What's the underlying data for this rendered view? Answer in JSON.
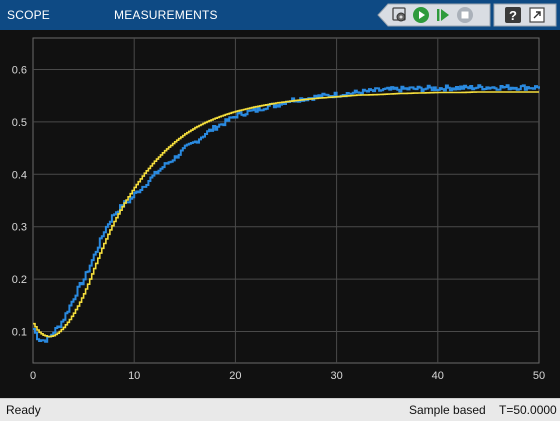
{
  "toolbar": {
    "tabs": [
      {
        "label": "SCOPE"
      },
      {
        "label": "MEASUREMENTS"
      }
    ],
    "icons": [
      "scope-settings-icon",
      "run-icon",
      "step-forward-icon",
      "stop-icon",
      "help-icon",
      "undock-icon"
    ],
    "accent": "#0e4a84"
  },
  "status": {
    "left": "Ready",
    "mode": "Sample based",
    "time": "T=50.0000"
  },
  "chart_data": {
    "type": "line",
    "xlim": [
      0,
      50
    ],
    "ylim": [
      0.04,
      0.66
    ],
    "x_ticks": [
      "0",
      "10",
      "20",
      "30",
      "40",
      "50"
    ],
    "y_ticks": [
      "0.1",
      "0.2",
      "0.3",
      "0.4",
      "0.5",
      "0.6"
    ],
    "grid": true,
    "background": "#111111",
    "series": [
      {
        "color": "#2a8ae0",
        "style": "stairs",
        "points": [
          [
            0,
            0.105
          ],
          [
            0.5,
            0.085
          ],
          [
            1,
            0.083
          ],
          [
            1.5,
            0.087
          ],
          [
            2,
            0.1
          ],
          [
            2.5,
            0.11
          ],
          [
            3,
            0.125
          ],
          [
            3.5,
            0.145
          ],
          [
            4,
            0.165
          ],
          [
            4.5,
            0.185
          ],
          [
            5,
            0.2
          ],
          [
            5.5,
            0.222
          ],
          [
            6,
            0.245
          ],
          [
            6.5,
            0.268
          ],
          [
            7,
            0.292
          ],
          [
            7.5,
            0.31
          ],
          [
            8,
            0.325
          ],
          [
            8.5,
            0.335
          ],
          [
            9,
            0.345
          ],
          [
            9.5,
            0.35
          ],
          [
            10,
            0.362
          ],
          [
            11,
            0.38
          ],
          [
            12,
            0.4
          ],
          [
            13,
            0.418
          ],
          [
            14,
            0.432
          ],
          [
            15,
            0.45
          ],
          [
            16,
            0.462
          ],
          [
            17,
            0.478
          ],
          [
            18,
            0.49
          ],
          [
            19,
            0.5
          ],
          [
            20,
            0.512
          ],
          [
            21,
            0.518
          ],
          [
            22,
            0.522
          ],
          [
            23,
            0.53
          ],
          [
            24,
            0.532
          ],
          [
            25,
            0.54
          ],
          [
            26,
            0.543
          ],
          [
            27,
            0.545
          ],
          [
            28,
            0.548
          ],
          [
            29,
            0.55
          ],
          [
            30,
            0.552
          ],
          [
            31,
            0.554
          ],
          [
            32,
            0.556
          ],
          [
            33,
            0.558
          ],
          [
            34,
            0.56
          ],
          [
            35,
            0.561
          ],
          [
            36,
            0.562
          ],
          [
            37,
            0.563
          ],
          [
            38,
            0.563
          ],
          [
            39,
            0.564
          ],
          [
            40,
            0.564
          ],
          [
            41,
            0.565
          ],
          [
            42,
            0.565
          ],
          [
            43,
            0.565
          ],
          [
            44,
            0.566
          ],
          [
            45,
            0.566
          ],
          [
            46,
            0.566
          ],
          [
            47,
            0.566
          ],
          [
            48,
            0.566
          ],
          [
            49,
            0.566
          ],
          [
            50,
            0.566
          ]
        ],
        "noise": 0.005
      },
      {
        "color": "#f5de3c",
        "style": "stairs",
        "points": [
          [
            0,
            0.115
          ],
          [
            0.5,
            0.1
          ],
          [
            1,
            0.093
          ],
          [
            1.5,
            0.09
          ],
          [
            2,
            0.092
          ],
          [
            2.5,
            0.098
          ],
          [
            3,
            0.108
          ],
          [
            3.5,
            0.12
          ],
          [
            4,
            0.135
          ],
          [
            4.5,
            0.152
          ],
          [
            5,
            0.172
          ],
          [
            5.5,
            0.195
          ],
          [
            6,
            0.22
          ],
          [
            6.5,
            0.245
          ],
          [
            7,
            0.268
          ],
          [
            7.5,
            0.29
          ],
          [
            8,
            0.31
          ],
          [
            8.5,
            0.328
          ],
          [
            9,
            0.345
          ],
          [
            9.5,
            0.36
          ],
          [
            10,
            0.375
          ],
          [
            11,
            0.402
          ],
          [
            12,
            0.425
          ],
          [
            13,
            0.445
          ],
          [
            14,
            0.462
          ],
          [
            15,
            0.477
          ],
          [
            16,
            0.489
          ],
          [
            17,
            0.499
          ],
          [
            18,
            0.507
          ],
          [
            19,
            0.514
          ],
          [
            20,
            0.52
          ],
          [
            22,
            0.529
          ],
          [
            24,
            0.536
          ],
          [
            26,
            0.541
          ],
          [
            28,
            0.545
          ],
          [
            30,
            0.548
          ],
          [
            32,
            0.551
          ],
          [
            34,
            0.552
          ],
          [
            36,
            0.554
          ],
          [
            38,
            0.555
          ],
          [
            40,
            0.556
          ],
          [
            42,
            0.556
          ],
          [
            44,
            0.557
          ],
          [
            46,
            0.557
          ],
          [
            48,
            0.557
          ],
          [
            50,
            0.557
          ]
        ],
        "noise": 0
      }
    ]
  }
}
